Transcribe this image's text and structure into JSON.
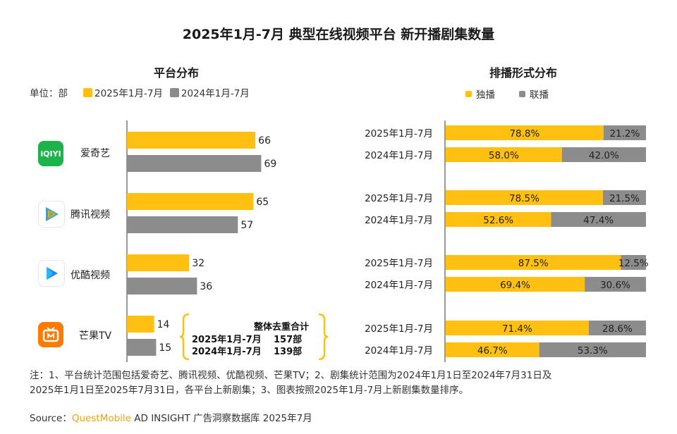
{
  "title": "2025年1月-7月 典型在线视频平台 新开播剧集数量",
  "left": {
    "subtitle": "平台分布",
    "unit_label": "单位：部",
    "legend": [
      {
        "label": "2025年1月-7月",
        "color": "#FFC012"
      },
      {
        "label": "2024年1月-7月",
        "color": "#8C8C8C"
      }
    ],
    "platforms": [
      {
        "name": "爱奇艺",
        "icon": "iqiyi-logo",
        "logo_text": "iQIYI"
      },
      {
        "name": "腾讯视频",
        "icon": "tencent-video-logo"
      },
      {
        "name": "优酷视频",
        "icon": "youku-logo"
      },
      {
        "name": "芒果TV",
        "icon": "mango-tv-logo"
      }
    ],
    "dedup": {
      "heading": "整体去重合计",
      "rows": [
        {
          "period": "2025年1月-7月",
          "value": "157部"
        },
        {
          "period": "2024年1月-7月",
          "value": "139部"
        }
      ]
    }
  },
  "right": {
    "subtitle": "排播形式分布",
    "legend": [
      {
        "label": "独播",
        "color": "#FFC012"
      },
      {
        "label": "联播",
        "color": "#8C8C8C"
      }
    ]
  },
  "chart_data": [
    {
      "type": "bar",
      "orientation": "horizontal",
      "categories": [
        "爱奇艺",
        "腾讯视频",
        "优酷视频",
        "芒果TV"
      ],
      "series": [
        {
          "name": "2025年1月-7月",
          "values": [
            66,
            65,
            32,
            14
          ],
          "color": "#FFC012"
        },
        {
          "name": "2024年1月-7月",
          "values": [
            69,
            57,
            36,
            15
          ],
          "color": "#8C8C8C"
        }
      ],
      "ylabel": "单位：部",
      "grid": false
    },
    {
      "type": "bar",
      "orientation": "horizontal",
      "stacked": true,
      "percent": true,
      "groups": [
        "爱奇艺",
        "腾讯视频",
        "优酷视频",
        "芒果TV"
      ],
      "rows": [
        {
          "label": "2025年1月-7月",
          "values": [
            78.8,
            21.2
          ]
        },
        {
          "label": "2024年1月-7月",
          "values": [
            58.0,
            42.0
          ]
        },
        {
          "label": "2025年1月-7月",
          "values": [
            78.5,
            21.5
          ]
        },
        {
          "label": "2024年1月-7月",
          "values": [
            52.6,
            47.4
          ]
        },
        {
          "label": "2025年1月-7月",
          "values": [
            87.5,
            12.5
          ]
        },
        {
          "label": "2024年1月-7月",
          "values": [
            69.4,
            30.6
          ]
        },
        {
          "label": "2025年1月-7月",
          "values": [
            71.4,
            28.6
          ]
        },
        {
          "label": "2024年1月-7月",
          "values": [
            46.7,
            53.3
          ]
        }
      ],
      "series": [
        {
          "name": "独播",
          "color": "#FFC012"
        },
        {
          "name": "联播",
          "color": "#8C8C8C"
        }
      ],
      "grid": false
    }
  ],
  "notes": [
    "注：1、平台统计范围包括爱奇艺、腾讯视频、优酷视频、芒果TV；2、剧集统计范围为2024年1月1日至2024年7月31日及",
    "2025年1月1日至2025年7月31日，各平台上新剧集；3、图表按照2025年1月-7月上新剧集数量排序。"
  ],
  "source": {
    "prefix": "Source：",
    "brand": "QuestMobile",
    "rest": " AD INSIGHT 广告洞察数据库 2025年7月",
    "brand_color": "#F5A300"
  }
}
